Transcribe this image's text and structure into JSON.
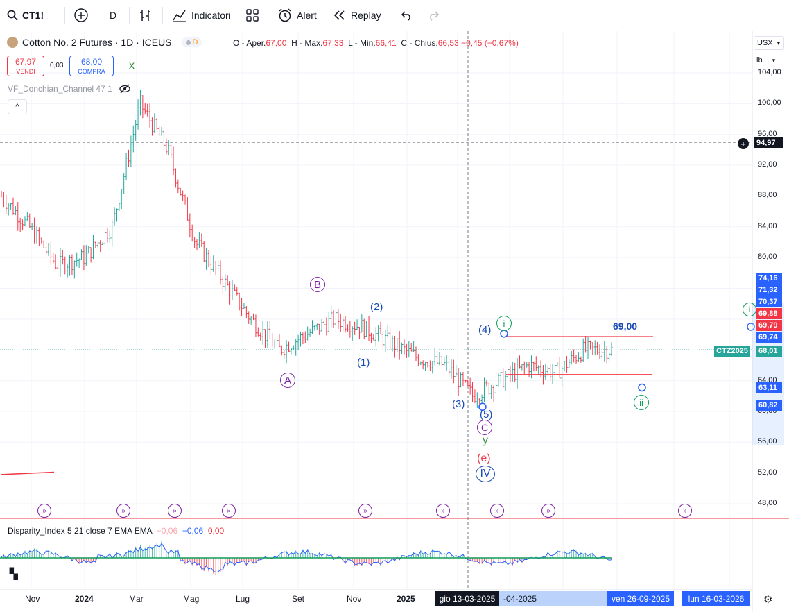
{
  "toolbar": {
    "symbol": "CT1!",
    "interval": "D",
    "indicators_label": "Indicatori",
    "alert_label": "Alert",
    "replay_label": "Replay"
  },
  "legend": {
    "title": "Cotton No. 2 Futures · 1D · ICEUS",
    "delay_badge": "D",
    "open_label": "O - Aper.",
    "open": "67,00",
    "high_label": "H - Max.",
    "high": "67,33",
    "low_label": "L - Min.",
    "low": "66,41",
    "close_label": "C - Chius.",
    "close": "66,53",
    "change": "−0,45 (−0,67%)",
    "sell_price": "67,97",
    "sell_label": "VENDI",
    "spread": "0,03",
    "buy_price": "68,00",
    "buy_label": "COMPRA",
    "indicator_name": "VF_Donchian_Channel 47 1"
  },
  "disparity": {
    "name": "Disparity_Index 5 21 close 7 EMA EMA",
    "v1": "−0,06",
    "v2": "−0,06",
    "v3": "0,00",
    "axis_label": "0,00"
  },
  "price_axis": {
    "currency": "USX",
    "unit": "lb",
    "ticks": [
      "104,00",
      "100,00",
      "96,00",
      "92,00",
      "88,00",
      "84,00",
      "80,00",
      "64,00",
      "60,00",
      "56,00",
      "52,00",
      "48,00"
    ],
    "crosshair_price": "94,97",
    "tags": [
      {
        "text": "74,16",
        "color": "#2962ff"
      },
      {
        "text": "71,32",
        "color": "#2962ff"
      },
      {
        "text": "70,37",
        "color": "#2962ff"
      },
      {
        "text": "69,88",
        "color": "#f23645"
      },
      {
        "text": "69,79",
        "color": "#f23645"
      },
      {
        "text": "69,74",
        "color": "#2962ff"
      },
      {
        "text": "68,01",
        "color": "#26a69a"
      },
      {
        "text": "63,11",
        "color": "#2962ff"
      },
      {
        "text": "60,82",
        "color": "#2962ff"
      }
    ],
    "contract_tag": "CTZ2025"
  },
  "time_axis": {
    "labels": [
      "Nov",
      "2024",
      "Mar",
      "Mag",
      "Lug",
      "Set",
      "Nov",
      "2025",
      "Lug"
    ],
    "crosshair_date": "gio 13-03-2025",
    "partial_date": "-04-2025",
    "tag2": "ven 26-09-2025",
    "tag3": "lun 16-03-2026"
  },
  "annotations": {
    "x": "x",
    "A": "A",
    "B": "B",
    "w1": "(1)",
    "w2": "(2)",
    "w3": "(3)",
    "w4": "(4)",
    "w5": "(5)",
    "c": "C",
    "y": "y",
    "e": "(e)",
    "IV": "IV",
    "i": "i",
    "ii": "ii",
    "i_right": "i",
    "level": "69,00"
  },
  "colors": {
    "up": "#26a69a",
    "down": "#f23645",
    "accent": "#2962ff",
    "purple": "#7b1fa2",
    "green": "#0f9d58"
  },
  "chart_data": {
    "type": "line",
    "title": "Cotton No. 2 Futures · 1D · ICEUS",
    "x": [
      "2023-10",
      "2023-11",
      "2023-12",
      "2024-01",
      "2024-02",
      "2024-03",
      "2024-04",
      "2024-05",
      "2024-06",
      "2024-07",
      "2024-08",
      "2024-09",
      "2024-10",
      "2024-11",
      "2024-12",
      "2025-01",
      "2025-02",
      "2025-03",
      "2025-04",
      "2025-05",
      "2025-06",
      "2025-07",
      "2025-08"
    ],
    "series": [
      {
        "values": [
          88,
          84,
          79,
          80,
          84,
          100,
          94,
          82,
          77,
          72,
          68,
          70,
          72,
          71,
          69,
          67,
          66,
          62,
          64,
          66,
          65,
          68,
          68
        ]
      }
    ],
    "ylim": [
      46,
      106
    ]
  }
}
